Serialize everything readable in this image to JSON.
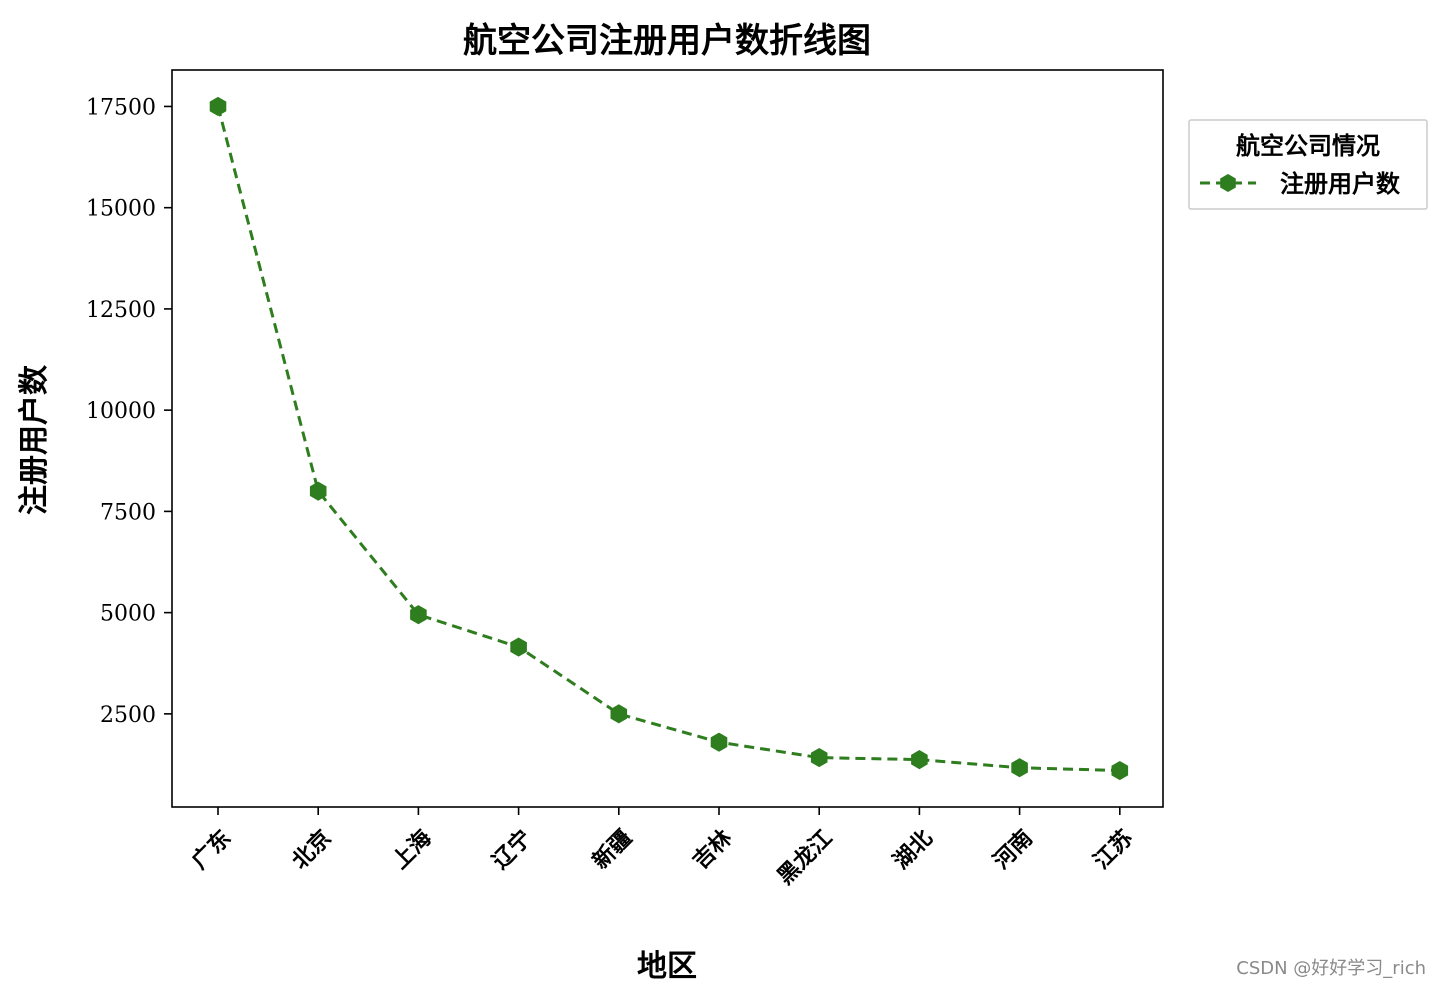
{
  "chart_data": {
    "type": "line",
    "title": "航空公司注册用户数折线图",
    "xlabel": "地区",
    "ylabel": "注册用户数",
    "categories": [
      "广东",
      "北京",
      "上海",
      "辽宁",
      "新疆",
      "吉林",
      "黑龙江",
      "湖北",
      "河南",
      "江苏"
    ],
    "series": [
      {
        "name": "注册用户数",
        "values": [
          17500,
          8000,
          4950,
          4150,
          2500,
          1800,
          1420,
          1370,
          1170,
          1100
        ],
        "color": "#2e7d1e",
        "line_style": "dashed",
        "marker": "hexagon"
      }
    ],
    "yticks": [
      2500,
      5000,
      7500,
      10000,
      12500,
      15000,
      17500
    ],
    "ylim": [
      200,
      18400
    ],
    "legend": {
      "title": "航空公司情况",
      "placement": "outside-top-right"
    },
    "grid": false
  },
  "watermark": "CSDN @好好学习_rich"
}
